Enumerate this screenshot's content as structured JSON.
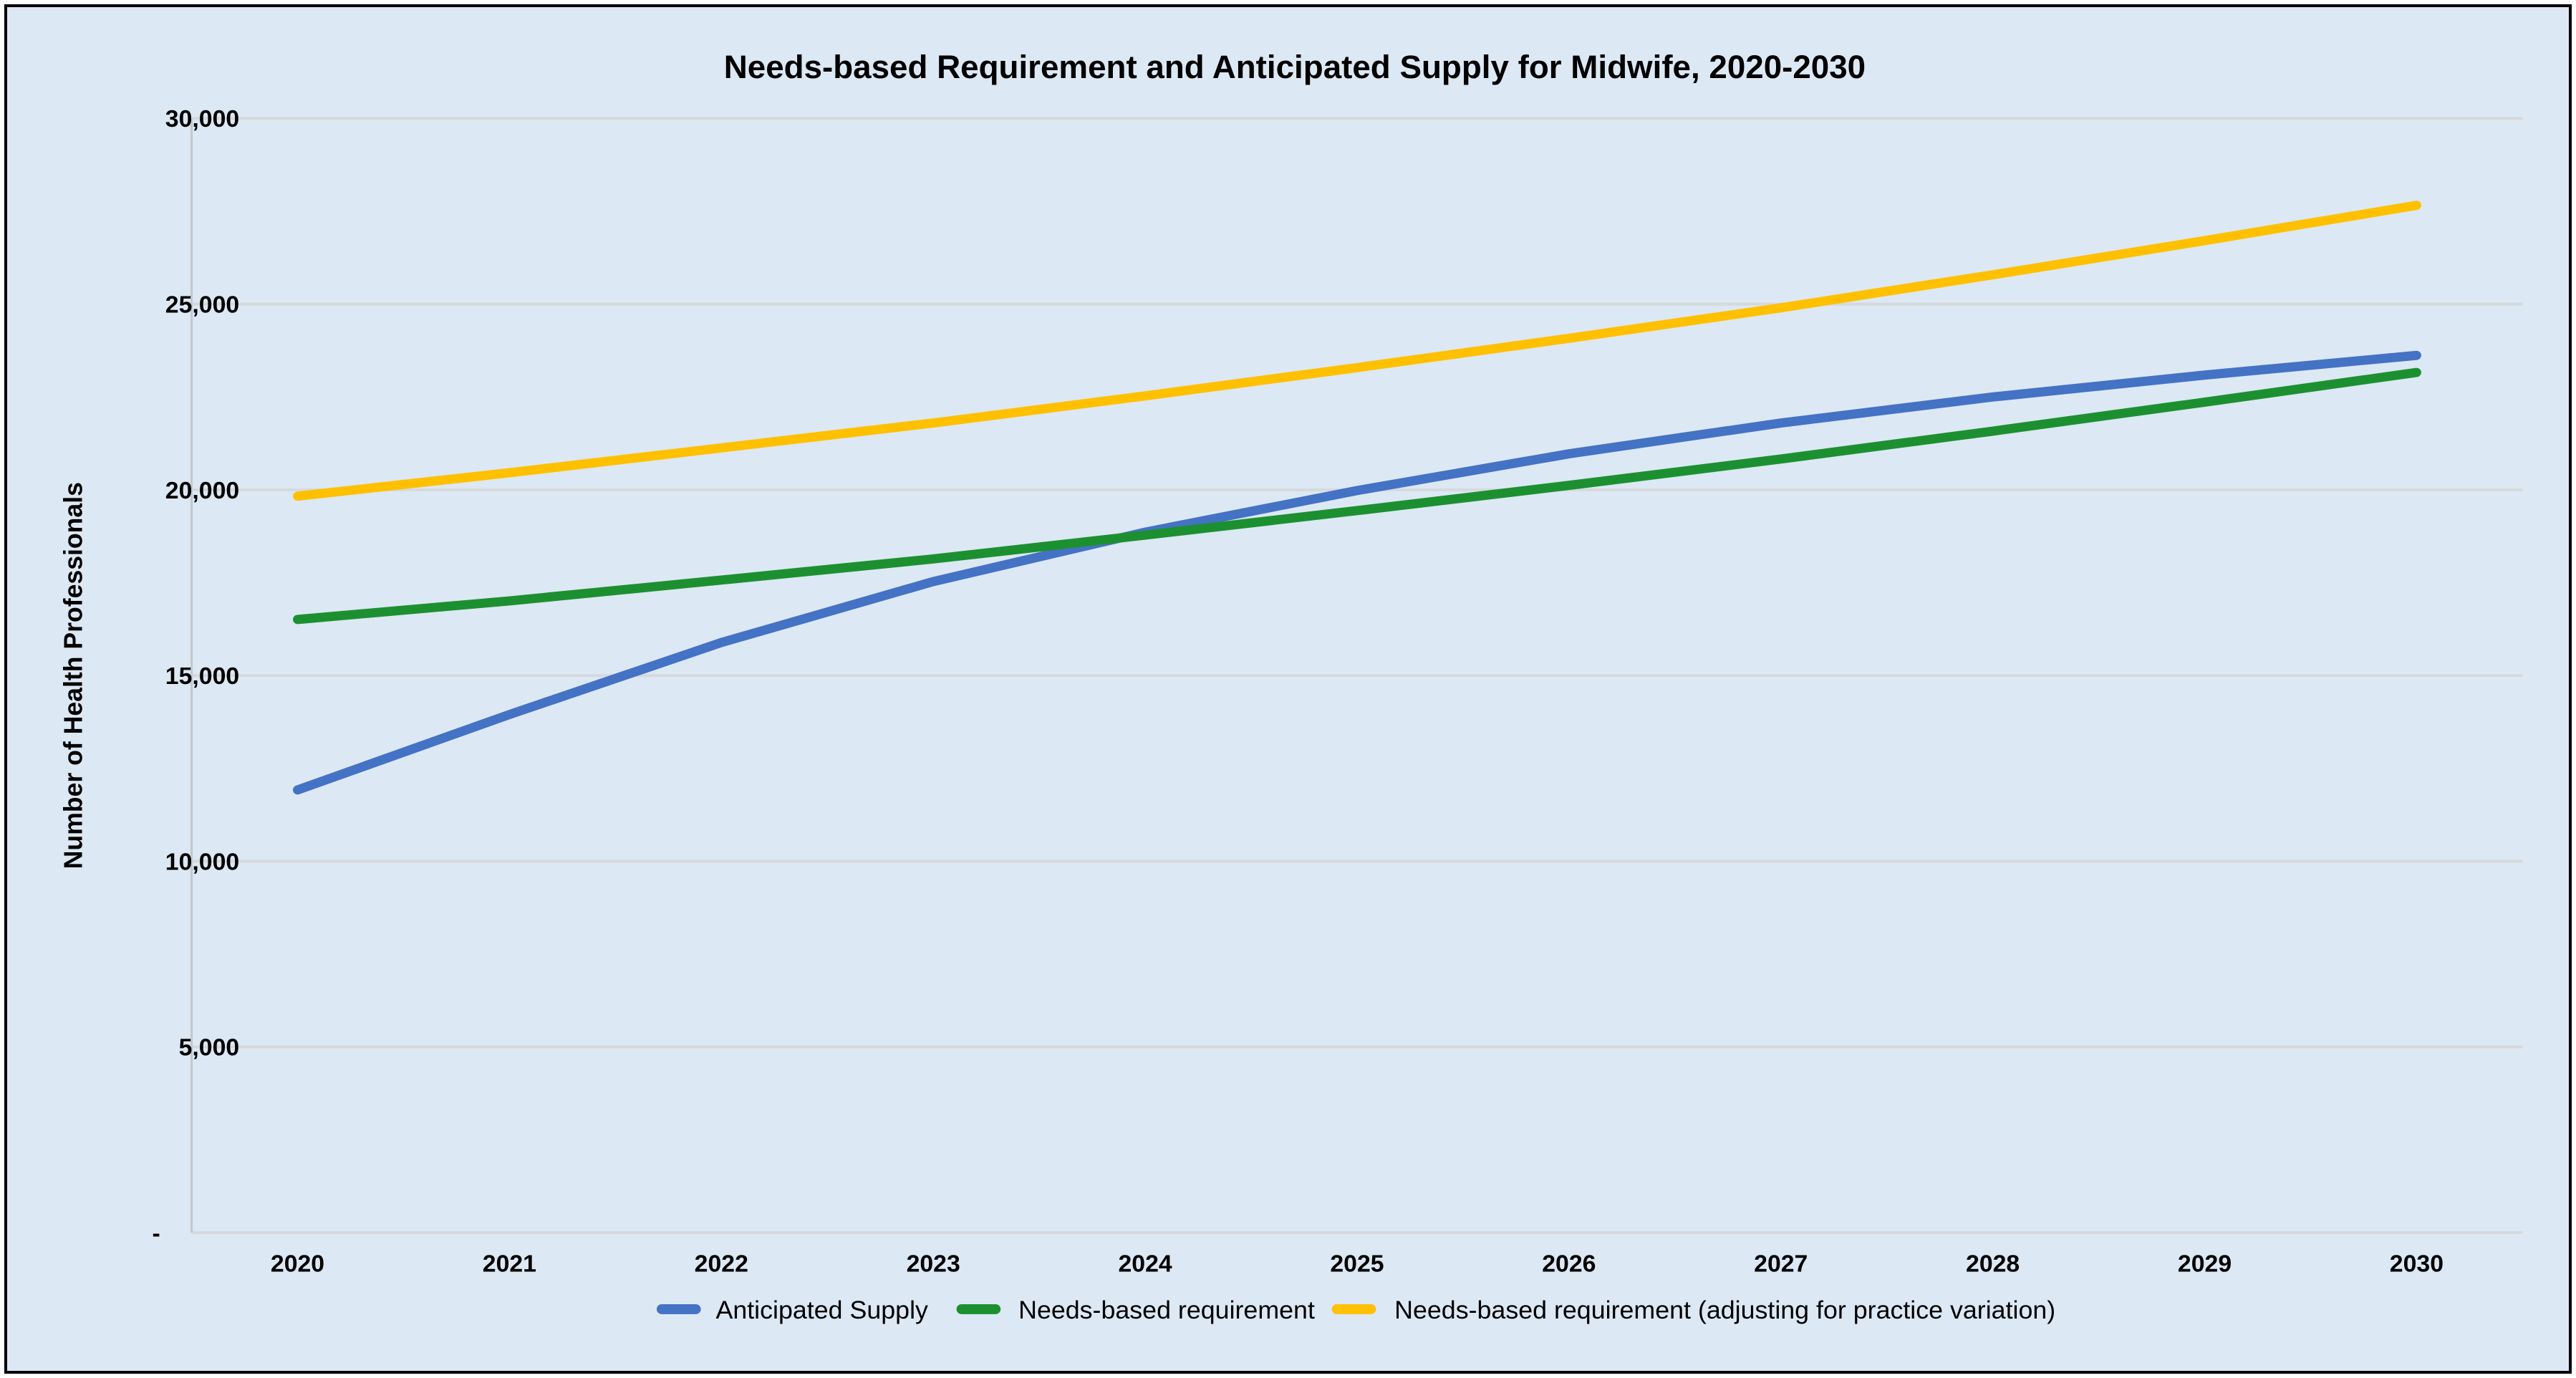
{
  "chart": {
    "title": "Needs-based Requirement and Anticipated Supply for Midwife, 2020-2030",
    "y_axis_title": "Number of Health Professionals"
  },
  "chart_data": {
    "type": "line",
    "title": "Needs-based Requirement and Anticipated Supply for Midwife, 2020-2030",
    "xlabel": "",
    "ylabel": "Number of Health Professionals",
    "categories": [
      "2020",
      "2021",
      "2022",
      "2023",
      "2024",
      "2025",
      "2026",
      "2027",
      "2028",
      "2029",
      "2030"
    ],
    "series": [
      {
        "name": "Anticipated Supply",
        "color": "#4472C4",
        "values": [
          11920,
          13950,
          15890,
          17530,
          18860,
          19980,
          20970,
          21800,
          22500,
          23090,
          23620
        ]
      },
      {
        "name": "Needs-based requirement",
        "color": "#1C9030",
        "values": [
          16510,
          17010,
          17570,
          18140,
          18780,
          19440,
          20120,
          20830,
          21580,
          22360,
          23160
        ]
      },
      {
        "name": "Needs-based requirement (adjusting for practice variation)",
        "color": "#FFC000",
        "values": [
          19830,
          20460,
          21130,
          21800,
          22530,
          23290,
          24080,
          24900,
          25790,
          26710,
          27660
        ]
      }
    ],
    "ylim": [
      0,
      30000
    ],
    "y_tick_step": 5000,
    "y_tick_labels": [
      "-",
      "5,000",
      "10,000",
      "15,000",
      "20,000",
      "25,000",
      "30,000"
    ],
    "grid": true,
    "legend_position": "bottom",
    "background": "#DCE8F4",
    "gridline_color": "#D6D9DC",
    "axis_line_color": "#C4C8CC",
    "frame_border_color": "#000000",
    "line_width": 13
  }
}
